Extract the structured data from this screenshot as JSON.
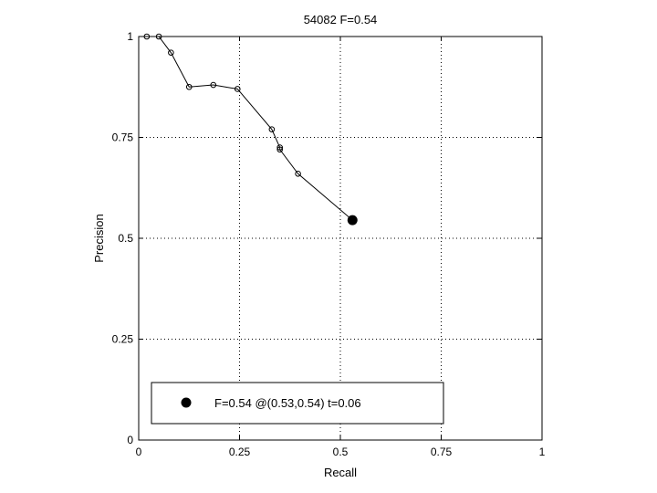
{
  "chart_data": {
    "type": "line",
    "title": "54082 F=0.54",
    "xlabel": "Recall",
    "ylabel": "Precision",
    "xlim": [
      0,
      1
    ],
    "ylim": [
      0,
      1
    ],
    "xticks": [
      0,
      0.25,
      0.5,
      0.75,
      1
    ],
    "xtick_labels": [
      "0",
      "0.25",
      "0.5",
      "0.75",
      "1"
    ],
    "yticks": [
      0,
      0.25,
      0.5,
      0.75,
      1
    ],
    "ytick_labels": [
      "0",
      "0.25",
      "0.5",
      "0.75",
      "1"
    ],
    "grid": true,
    "legend_position": "lower-left",
    "series": [
      {
        "x": [
          0.02,
          0.05,
          0.08,
          0.125,
          0.185,
          0.245,
          0.33,
          0.35,
          0.35,
          0.395,
          0.53
        ],
        "y": [
          1.0,
          1.0,
          0.96,
          0.875,
          0.88,
          0.87,
          0.77,
          0.725,
          0.72,
          0.66,
          0.545
        ],
        "marker": "open-circle",
        "color": "#000000"
      }
    ],
    "highlight_point": {
      "x": 0.53,
      "y": 0.545,
      "marker": "filled-circle",
      "color": "#000000"
    },
    "legend": {
      "entries": [
        {
          "label": "F=0.54 @(0.53,0.54) t=0.06",
          "marker": "filled-circle"
        }
      ]
    }
  }
}
